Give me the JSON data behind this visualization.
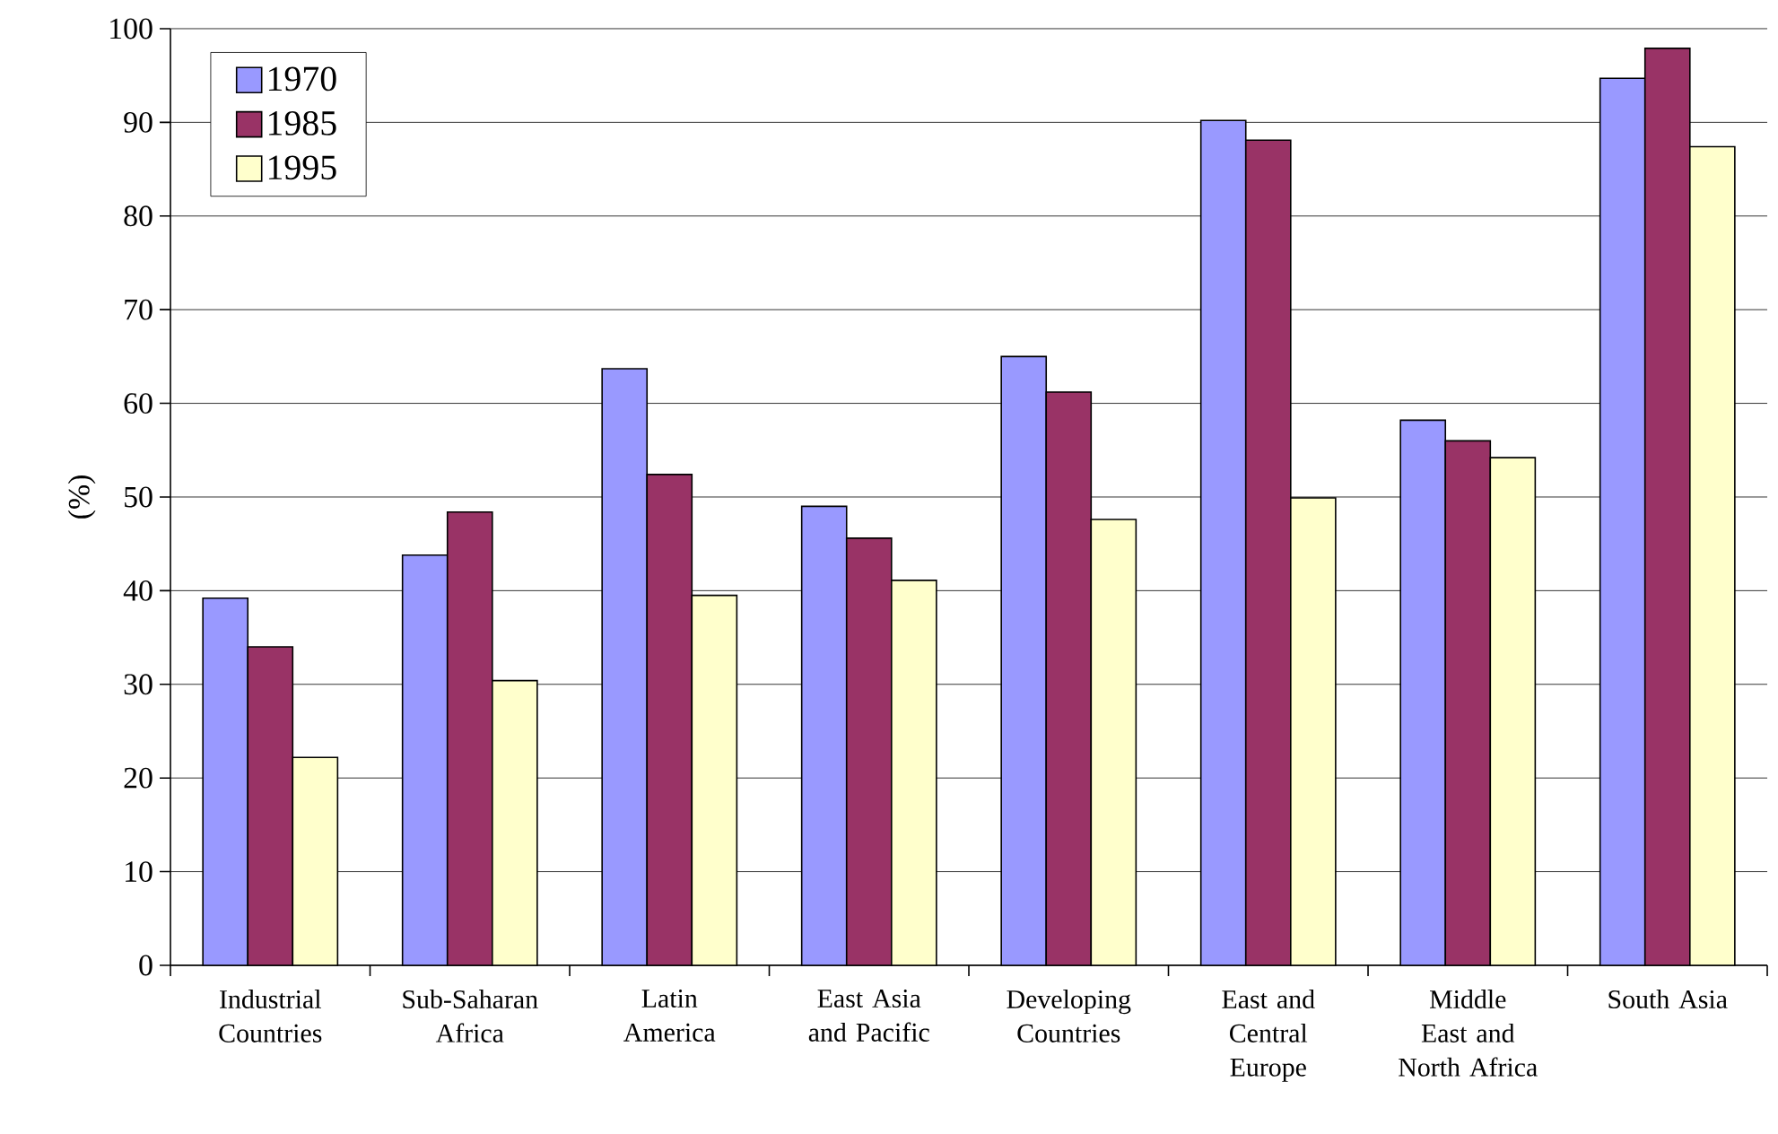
{
  "chart_data": {
    "type": "bar",
    "ylabel": "(%)",
    "categories": [
      "Industrial Countries",
      "Sub-Saharan Africa",
      "Latin America",
      "East Asia and Pacific",
      "Developing Countries",
      "East and Central Europe",
      "Middle East and North Africa",
      "South Asia"
    ],
    "series": [
      {
        "name": "1970",
        "color": "#9999ff",
        "values": [
          39.2,
          43.8,
          63.7,
          49.0,
          65.0,
          90.2,
          58.2,
          94.7
        ]
      },
      {
        "name": "1985",
        "color": "#993366",
        "values": [
          34.0,
          48.4,
          52.4,
          45.6,
          61.2,
          88.1,
          56.0,
          97.9
        ]
      },
      {
        "name": "1995",
        "color": "#ffffcc",
        "values": [
          22.2,
          30.4,
          39.5,
          41.1,
          47.6,
          49.9,
          54.2,
          87.4
        ]
      }
    ],
    "ylim": [
      0,
      100
    ],
    "yticks": [
      0,
      10,
      20,
      30,
      40,
      50,
      60,
      70,
      80,
      90,
      100
    ],
    "grid": "y",
    "legend": "top left"
  }
}
